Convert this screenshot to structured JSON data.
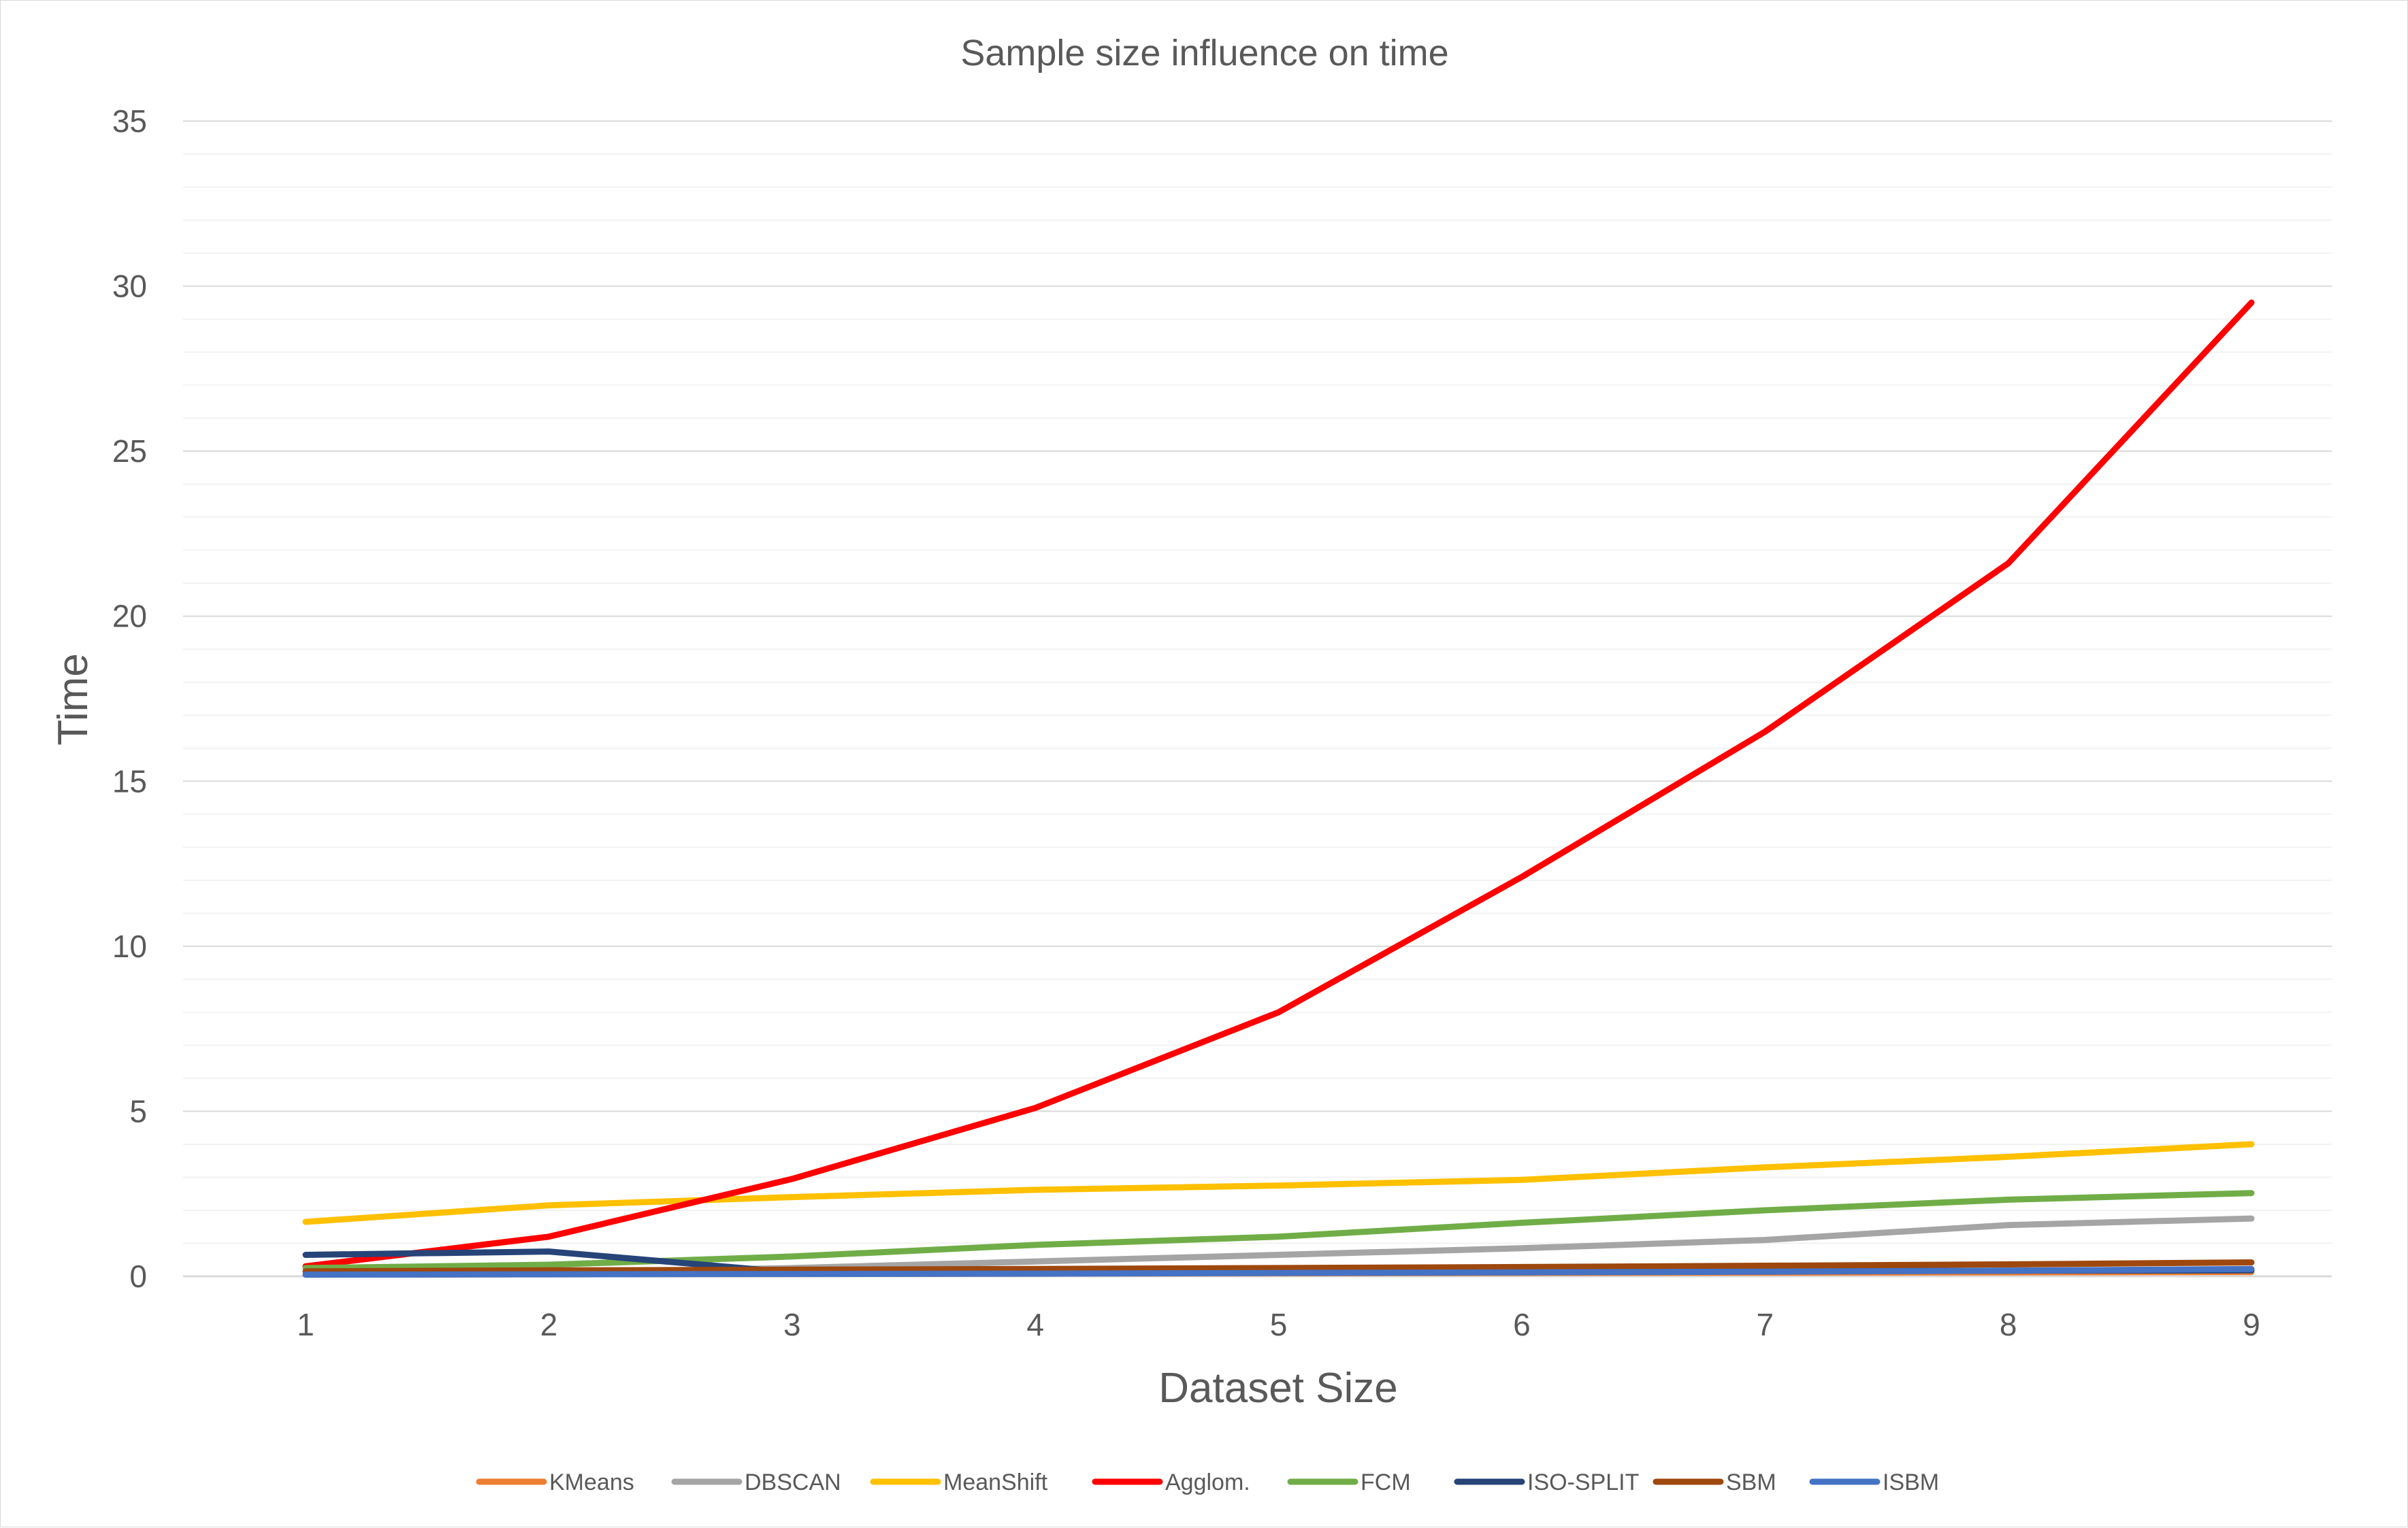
{
  "chart_data": {
    "type": "line",
    "title": "Sample size influence on time",
    "xlabel": "Dataset Size",
    "ylabel": "Time",
    "x": [
      1,
      2,
      3,
      4,
      5,
      6,
      7,
      8,
      9
    ],
    "ylim": [
      0,
      35
    ],
    "yticks": [
      0,
      5,
      10,
      15,
      20,
      25,
      30,
      35
    ],
    "minor_grid_step": 1,
    "grid": true,
    "legend_position": "bottom",
    "series": [
      {
        "name": "KMeans",
        "color": "#ED7D31",
        "values": [
          0.05,
          0.06,
          0.07,
          0.08,
          0.09,
          0.1,
          0.11,
          0.12,
          0.13
        ]
      },
      {
        "name": "DBSCAN",
        "color": "#A5A5A5",
        "values": [
          0.05,
          0.1,
          0.25,
          0.45,
          0.65,
          0.85,
          1.1,
          1.55,
          1.75
        ]
      },
      {
        "name": "MeanShift",
        "color": "#FFC000",
        "values": [
          1.65,
          2.15,
          2.4,
          2.62,
          2.75,
          2.92,
          3.3,
          3.62,
          4.0
        ]
      },
      {
        "name": "Agglom.",
        "color": "#FF0000",
        "values": [
          0.3,
          1.2,
          2.95,
          5.1,
          8.0,
          12.1,
          16.5,
          21.6,
          29.5
        ]
      },
      {
        "name": "FCM",
        "color": "#70AD47",
        "values": [
          0.25,
          0.35,
          0.6,
          0.95,
          1.2,
          1.62,
          2.0,
          2.32,
          2.52
        ]
      },
      {
        "name": "ISO-SPLIT",
        "color": "#264478",
        "values": [
          0.65,
          0.75,
          0.12,
          0.13,
          0.14,
          0.15,
          0.16,
          0.17,
          0.18
        ]
      },
      {
        "name": "SBM",
        "color": "#9E480E",
        "values": [
          0.15,
          0.18,
          0.2,
          0.22,
          0.25,
          0.28,
          0.32,
          0.36,
          0.42
        ]
      },
      {
        "name": "ISBM",
        "color": "#4472C4",
        "values": [
          0.05,
          0.06,
          0.07,
          0.08,
          0.1,
          0.12,
          0.14,
          0.17,
          0.22
        ]
      }
    ]
  }
}
